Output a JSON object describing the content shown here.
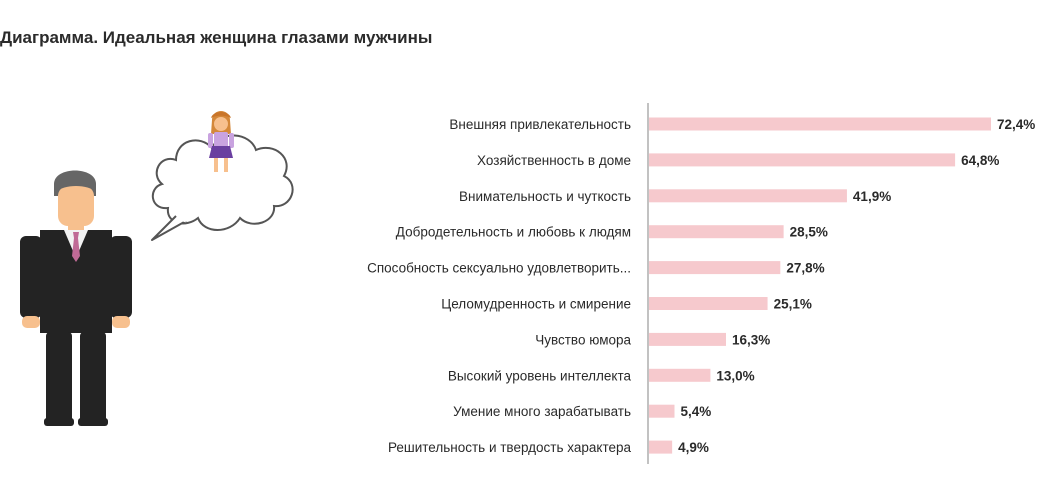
{
  "page": {
    "title": "Диаграмма. Идеальная женщина глазами мужчины"
  },
  "illustration": {
    "man_icon": "man-in-suit-icon",
    "thought_bubble_icon": "thought-bubble-icon",
    "woman_icon": "woman-icon"
  },
  "colors": {
    "bar": "#f6c9cd",
    "axis": "#9a9a9a",
    "suit": "#232323",
    "tie": "#c06a96",
    "skin": "#f7c08e",
    "hair": "#666666"
  },
  "chart_data": {
    "type": "bar",
    "orientation": "horizontal",
    "title": "Диаграмма. Идеальная женщина глазами мужчины",
    "xlabel": "",
    "ylabel": "",
    "xlim": [
      0,
      72.4
    ],
    "grid": false,
    "categories": [
      "Внешняя привлекательность",
      "Хозяйственность в доме",
      "Внимательность и чуткость",
      "Добродетельность и любовь к людям",
      "Способность сексуально удовлетворить...",
      "Целомудренность и смирение",
      "Чувство юмора",
      "Высокий уровень интеллекта",
      "Умение много зарабатывать",
      "Решительность и твердость характера"
    ],
    "values": [
      72.4,
      64.8,
      41.9,
      28.5,
      27.8,
      25.1,
      16.3,
      13.0,
      5.4,
      4.9
    ],
    "value_labels": [
      "72,4%",
      "64,8%",
      "41,9%",
      "28,5%",
      "27,8%",
      "25,1%",
      "16,3%",
      "13,0%",
      "5,4%",
      "4,9%"
    ]
  }
}
